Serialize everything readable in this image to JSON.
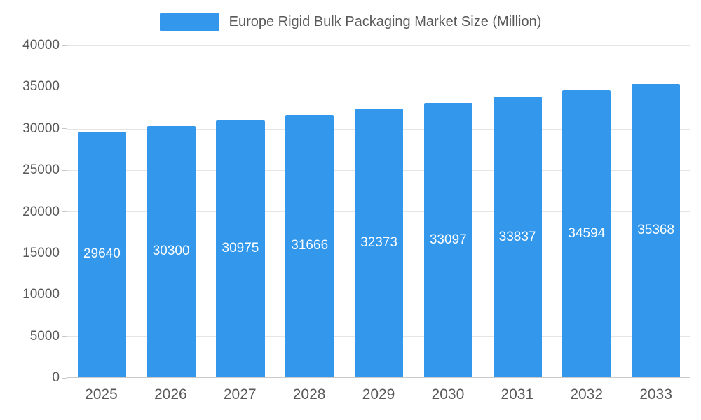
{
  "legend": {
    "title": "Europe Rigid Bulk Packaging Market Size (Million)"
  },
  "chart_data": {
    "type": "bar",
    "title": "Europe Rigid Bulk Packaging Market Size (Million)",
    "categories": [
      "2025",
      "2026",
      "2027",
      "2028",
      "2029",
      "2030",
      "2031",
      "2032",
      "2033"
    ],
    "values": [
      29640,
      30300,
      30975,
      31666,
      32373,
      33097,
      33837,
      34594,
      35368
    ],
    "xlabel": "",
    "ylabel": "",
    "ylim": [
      0,
      40000
    ],
    "ytick_step": 5000,
    "ytick_labels": [
      "0",
      "5000",
      "10000",
      "15000",
      "20000",
      "25000",
      "30000",
      "35000",
      "40000"
    ],
    "grid": true,
    "legend_position": "top-center",
    "bar_color": "#3398EC",
    "bar_label_color": "#ffffff",
    "axis_text_color": "#595959",
    "gridline_color": "#e5e5e5",
    "axis_line_color": "#c9c9c9",
    "background_color": "#ffffff"
  }
}
